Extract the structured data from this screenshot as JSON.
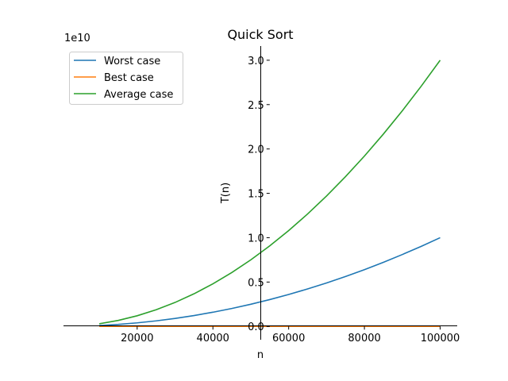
{
  "chart_data": {
    "type": "line",
    "title": "Quick Sort",
    "xlabel": "n",
    "ylabel": "T(n)",
    "y_offset_label": "1e10",
    "y_scale": 10000000000,
    "xlim": [
      550,
      104500
    ],
    "ylim": [
      -0.15,
      3.16
    ],
    "x_ticks": [
      20000,
      40000,
      60000,
      80000,
      100000
    ],
    "x_tick_labels": [
      "20000",
      "40000",
      "60000",
      "80000",
      "100000"
    ],
    "y_ticks": [
      0.0,
      0.5,
      1.0,
      1.5,
      2.0,
      2.5,
      3.0
    ],
    "y_tick_labels": [
      "0.0",
      "0.5",
      "1.0",
      "1.5",
      "2.0",
      "2.5",
      "3.0"
    ],
    "grid": false,
    "spines": "centered at x=55000, y=0",
    "legend_position": "top-left",
    "x": [
      10000,
      15000,
      20000,
      25000,
      30000,
      35000,
      40000,
      45000,
      50000,
      55000,
      60000,
      65000,
      70000,
      75000,
      80000,
      85000,
      90000,
      95000,
      100000
    ],
    "series": [
      {
        "name": "Worst case",
        "color": "#1f77b4",
        "values": [
          0.01,
          0.0225,
          0.04,
          0.0625,
          0.09,
          0.1225,
          0.16,
          0.2025,
          0.25,
          0.3025,
          0.36,
          0.4225,
          0.49,
          0.5625,
          0.64,
          0.7225,
          0.81,
          0.9025,
          1.0
        ]
      },
      {
        "name": "Best case",
        "color": "#ff7f0e",
        "values": [
          1.33e-05,
          2.09e-05,
          2.86e-05,
          3.65e-05,
          4.46e-05,
          5.28e-05,
          6.12e-05,
          6.96e-05,
          7.8e-05,
          8.66e-05,
          9.52e-05,
          0.0001039,
          0.0001127,
          0.0001215,
          0.0001303,
          0.0001392,
          0.0001481,
          0.0001571,
          0.0001661
        ]
      },
      {
        "name": "Average case",
        "color": "#2ca02c",
        "values": [
          0.03,
          0.0675,
          0.12,
          0.1875,
          0.27,
          0.3675,
          0.48,
          0.6075,
          0.75,
          0.9075,
          1.08,
          1.2675,
          1.47,
          1.6875,
          1.92,
          2.1675,
          2.43,
          2.7075,
          3.0
        ]
      }
    ]
  }
}
